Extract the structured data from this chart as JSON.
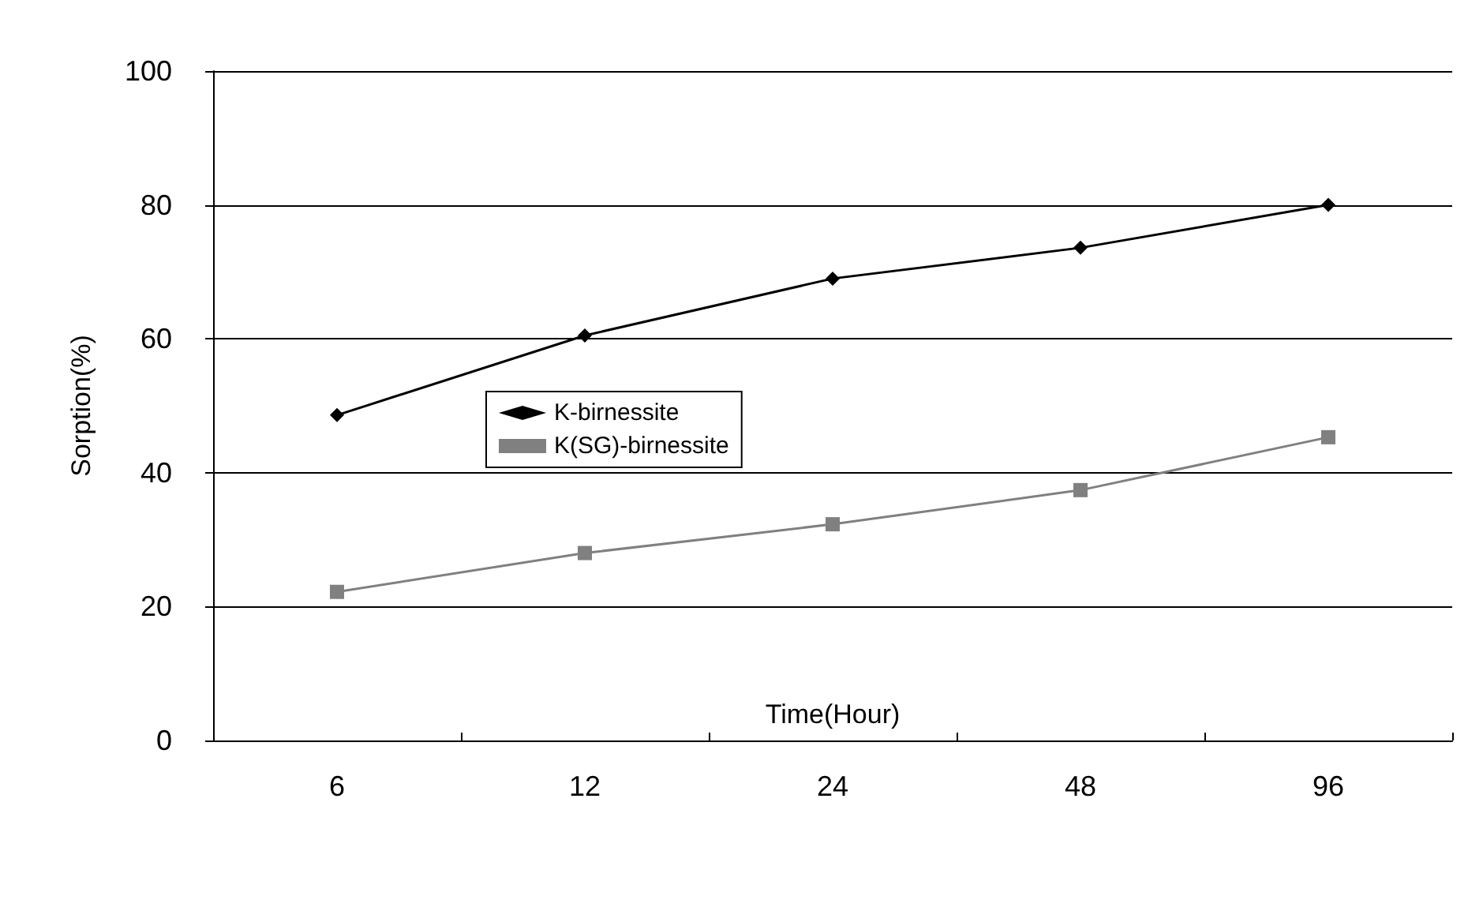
{
  "chart_data": {
    "type": "line",
    "xlabel": "Time(Hour)",
    "ylabel": "Sorption(%)",
    "categories": [
      "6",
      "12",
      "24",
      "48",
      "96"
    ],
    "series": [
      {
        "name": "K-birnessite",
        "color": "#000000",
        "marker": "diamond",
        "values": [
          48.6,
          60.5,
          69,
          73.6,
          80
        ]
      },
      {
        "name": "K(SG)-birnessite",
        "color": "#808080",
        "marker": "square",
        "values": [
          22.2,
          28,
          32.3,
          37.4,
          45.3
        ]
      }
    ],
    "ylim": [
      0,
      100
    ],
    "yticks": [
      0,
      20,
      40,
      60,
      80,
      100
    ],
    "grid": "y",
    "legend": "left"
  }
}
